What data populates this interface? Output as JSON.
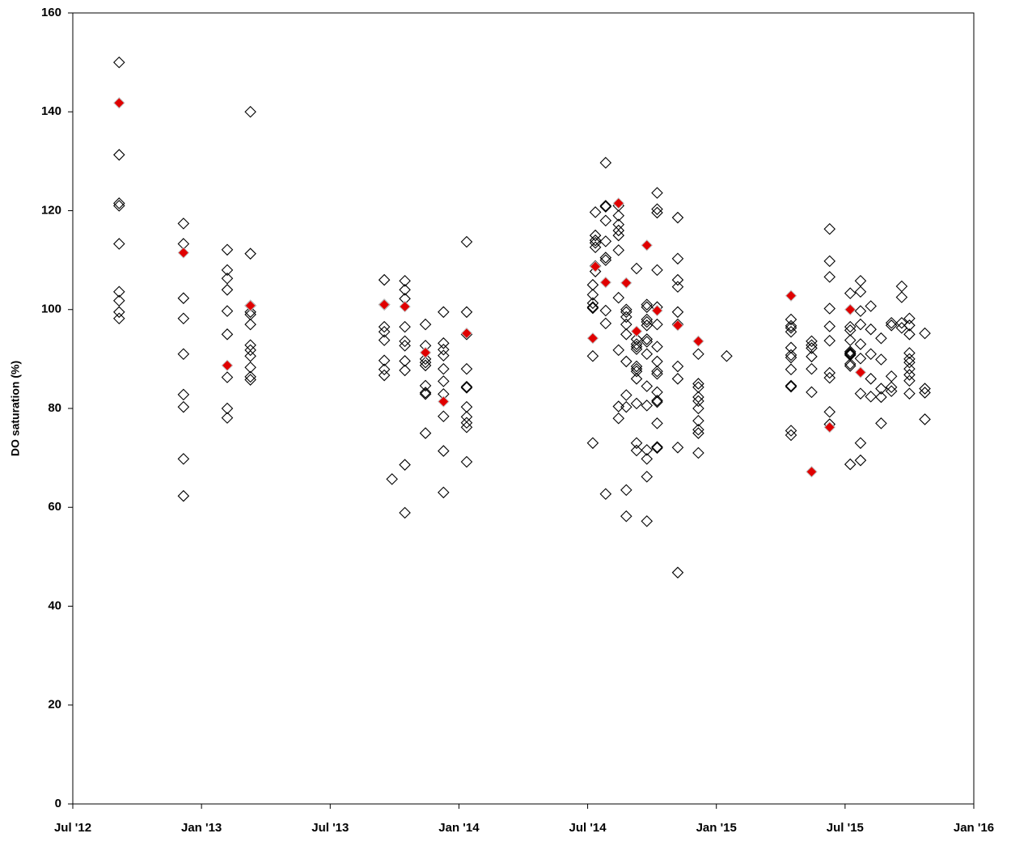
{
  "chart_data": {
    "type": "scatter",
    "y_label": "DO saturation (%)",
    "ylim": [
      0,
      160
    ],
    "yticks": [
      0,
      20,
      40,
      60,
      80,
      100,
      120,
      140,
      160
    ],
    "xlim": [
      2012.5,
      2016
    ],
    "xticks": [
      {
        "value": 2012.5,
        "label": "Jul '12"
      },
      {
        "value": 2013,
        "label": "Jan '13"
      },
      {
        "value": 2013.5,
        "label": "Jul '13"
      },
      {
        "value": 2014,
        "label": "Jan '14"
      },
      {
        "value": 2014.5,
        "label": "Jul '14"
      },
      {
        "value": 2015,
        "label": "Jan '15"
      },
      {
        "value": 2015.5,
        "label": "Jul '15"
      },
      {
        "value": 2016,
        "label": "Jan '16"
      }
    ],
    "grid": false,
    "series": [
      {
        "color": "#000000",
        "filled": false,
        "x": [
          2012.68,
          2012.68,
          2012.68,
          2012.68,
          2012.68,
          2012.68,
          2012.68,
          2012.68,
          2012.68,
          2012.93,
          2012.93,
          2012.93,
          2012.93,
          2012.93,
          2012.93,
          2012.93,
          2012.93,
          2012.93,
          2013.1,
          2013.1,
          2013.1,
          2013.1,
          2013.1,
          2013.1,
          2013.1,
          2013.1,
          2013.1,
          2013.19,
          2013.19,
          2013.19,
          2013.19,
          2013.19,
          2013.19,
          2013.19,
          2013.19,
          2013.19,
          2013.19,
          2013.19,
          2013.19,
          2013.71,
          2013.71,
          2013.71,
          2013.71,
          2013.71,
          2013.71,
          2013.71,
          2013.71,
          2013.74,
          2013.79,
          2013.79,
          2013.79,
          2013.79,
          2013.79,
          2013.79,
          2013.79,
          2013.79,
          2013.79,
          2013.79,
          2013.87,
          2013.87,
          2013.87,
          2013.87,
          2013.87,
          2013.87,
          2013.87,
          2013.87,
          2013.87,
          2013.94,
          2013.94,
          2013.94,
          2013.94,
          2013.94,
          2013.94,
          2013.94,
          2013.94,
          2013.94,
          2013.94,
          2014.03,
          2014.03,
          2014.03,
          2014.03,
          2014.03,
          2014.03,
          2014.03,
          2014.03,
          2014.03,
          2014.03,
          2014.03,
          2014.52,
          2014.52,
          2014.52,
          2014.52,
          2014.52,
          2014.52,
          2014.52,
          2014.53,
          2014.53,
          2014.53,
          2014.53,
          2014.53,
          2014.53,
          2014.53,
          2014.57,
          2014.57,
          2014.57,
          2014.57,
          2014.57,
          2014.57,
          2014.57,
          2014.57,
          2014.57,
          2014.57,
          2014.62,
          2014.62,
          2014.62,
          2014.62,
          2014.62,
          2014.62,
          2014.62,
          2014.62,
          2014.62,
          2014.62,
          2014.65,
          2014.65,
          2014.65,
          2014.65,
          2014.65,
          2014.65,
          2014.65,
          2014.65,
          2014.65,
          2014.65,
          2014.69,
          2014.69,
          2014.69,
          2014.69,
          2014.69,
          2014.69,
          2014.69,
          2014.69,
          2014.69,
          2014.69,
          2014.69,
          2014.69,
          2014.73,
          2014.73,
          2014.73,
          2014.73,
          2014.73,
          2014.73,
          2014.73,
          2014.73,
          2014.73,
          2014.73,
          2014.73,
          2014.73,
          2014.73,
          2014.73,
          2014.77,
          2014.77,
          2014.77,
          2014.77,
          2014.77,
          2014.77,
          2014.77,
          2014.77,
          2014.77,
          2014.77,
          2014.77,
          2014.77,
          2014.77,
          2014.77,
          2014.77,
          2014.77,
          2014.85,
          2014.85,
          2014.85,
          2014.85,
          2014.85,
          2014.85,
          2014.85,
          2014.85,
          2014.85,
          2014.85,
          2014.93,
          2014.93,
          2014.93,
          2014.93,
          2014.93,
          2014.93,
          2014.93,
          2014.93,
          2014.93,
          2014.93,
          2015.04,
          2015.29,
          2015.29,
          2015.29,
          2015.29,
          2015.29,
          2015.29,
          2015.29,
          2015.29,
          2015.29,
          2015.29,
          2015.29,
          2015.29,
          2015.37,
          2015.37,
          2015.37,
          2015.37,
          2015.37,
          2015.37,
          2015.44,
          2015.44,
          2015.44,
          2015.44,
          2015.44,
          2015.44,
          2015.44,
          2015.44,
          2015.44,
          2015.44,
          2015.52,
          2015.52,
          2015.52,
          2015.52,
          2015.52,
          2015.52,
          2015.52,
          2015.52,
          2015.52,
          2015.52,
          2015.52,
          2015.56,
          2015.56,
          2015.56,
          2015.56,
          2015.56,
          2015.56,
          2015.56,
          2015.56,
          2015.56,
          2015.6,
          2015.6,
          2015.6,
          2015.6,
          2015.6,
          2015.64,
          2015.64,
          2015.64,
          2015.64,
          2015.64,
          2015.68,
          2015.68,
          2015.68,
          2015.68,
          2015.68,
          2015.72,
          2015.72,
          2015.72,
          2015.72,
          2015.75,
          2015.75,
          2015.75,
          2015.75,
          2015.75,
          2015.75,
          2015.75,
          2015.75,
          2015.75,
          2015.75,
          2015.81,
          2015.81,
          2015.81,
          2015.81
        ],
        "values": [
          150,
          131.3,
          121.5,
          121,
          113.3,
          103.6,
          101.8,
          99.5,
          98.2,
          117.4,
          113.3,
          102.3,
          98.2,
          91,
          82.8,
          80.3,
          69.8,
          62.3,
          112.1,
          108,
          106.3,
          104,
          99.7,
          95,
          86.3,
          80,
          78.1,
          140,
          111.3,
          100.8,
          99.5,
          99,
          97,
          92.8,
          91.8,
          90.6,
          88.3,
          86.4,
          85.8,
          106,
          101,
          96.5,
          95.5,
          93.8,
          89.7,
          87.9,
          86.7,
          65.7,
          105.8,
          104,
          102.2,
          96.5,
          93.6,
          92.7,
          89.6,
          87.7,
          68.6,
          58.9,
          97,
          92.7,
          90,
          89.3,
          88.7,
          84.6,
          83.2,
          82.9,
          75,
          99.5,
          93.2,
          91.9,
          90.7,
          88,
          85.5,
          82.9,
          78.4,
          71.4,
          63,
          113.7,
          99.5,
          95,
          88,
          84.4,
          84.2,
          80.3,
          78.3,
          77.1,
          76.2,
          69.2,
          105,
          103,
          101.3,
          100.5,
          100.3,
          90.6,
          73,
          119.7,
          115,
          114,
          113.5,
          112.6,
          108.8,
          107.7,
          129.7,
          121,
          120.8,
          118,
          113.8,
          110.5,
          110,
          99.8,
          97.2,
          62.7,
          121,
          119,
          117.2,
          116,
          115,
          112,
          102.4,
          91.8,
          80.4,
          78,
          100,
          99.5,
          98.5,
          97,
          95,
          89.5,
          82.7,
          80.3,
          63.5,
          58.2,
          108.3,
          94,
          93,
          92.5,
          92,
          88.5,
          88,
          87.5,
          86,
          81,
          73,
          71.5,
          101,
          100.5,
          98,
          97.5,
          96.8,
          94,
          93.5,
          91,
          84.5,
          80.6,
          71.6,
          69.8,
          66.2,
          57.2,
          123.6,
          120.3,
          119.6,
          108,
          100.5,
          97,
          92.5,
          89.5,
          87.5,
          87,
          83.3,
          81.6,
          81.3,
          77,
          72.2,
          72,
          118.6,
          110.3,
          106,
          104.6,
          99.5,
          97,
          88.5,
          86,
          72.1,
          46.8,
          91,
          85,
          84.3,
          82.3,
          81.5,
          80,
          77.5,
          75.7,
          75,
          71,
          90.6,
          98,
          96.7,
          96.3,
          95.5,
          92.3,
          90.8,
          90.3,
          87.9,
          84.6,
          84.4,
          75.5,
          74.6,
          93.6,
          92.8,
          92.2,
          90.5,
          88,
          83.3,
          116.3,
          109.8,
          106.6,
          100.2,
          96.6,
          93.7,
          87.2,
          86.2,
          79.3,
          76.8,
          103.3,
          96.5,
          95.8,
          93.8,
          91.5,
          91.2,
          91,
          90.8,
          89,
          88.6,
          68.7,
          105.8,
          103.6,
          99.7,
          97,
          93,
          90.1,
          83,
          73,
          69.5,
          100.7,
          96,
          91,
          86,
          82.4,
          94.2,
          89.9,
          84,
          82.3,
          77,
          97.3,
          96.8,
          86.5,
          84.3,
          83.5,
          104.7,
          102.5,
          97.3,
          96.3,
          98.2,
          96.8,
          95,
          91.2,
          90,
          89.3,
          88,
          86.8,
          85.6,
          83,
          95.2,
          84,
          83.2,
          77.8
        ]
      },
      {
        "color": "#e00000",
        "filled": true,
        "x": [
          2012.68,
          2012.93,
          2013.1,
          2013.19,
          2013.71,
          2013.79,
          2013.87,
          2013.94,
          2014.03,
          2014.52,
          2014.53,
          2014.57,
          2014.62,
          2014.65,
          2014.69,
          2014.73,
          2014.77,
          2014.85,
          2014.93,
          2015.29,
          2015.37,
          2015.44,
          2015.52,
          2015.56
        ],
        "values": [
          141.8,
          111.5,
          88.7,
          100.8,
          101,
          100.6,
          91.3,
          81.4,
          95.2,
          94.2,
          108.7,
          105.5,
          121.5,
          105.4,
          95.6,
          113,
          99.8,
          96.8,
          93.6,
          102.8,
          67.2,
          76.2,
          100,
          87.3
        ]
      }
    ]
  }
}
